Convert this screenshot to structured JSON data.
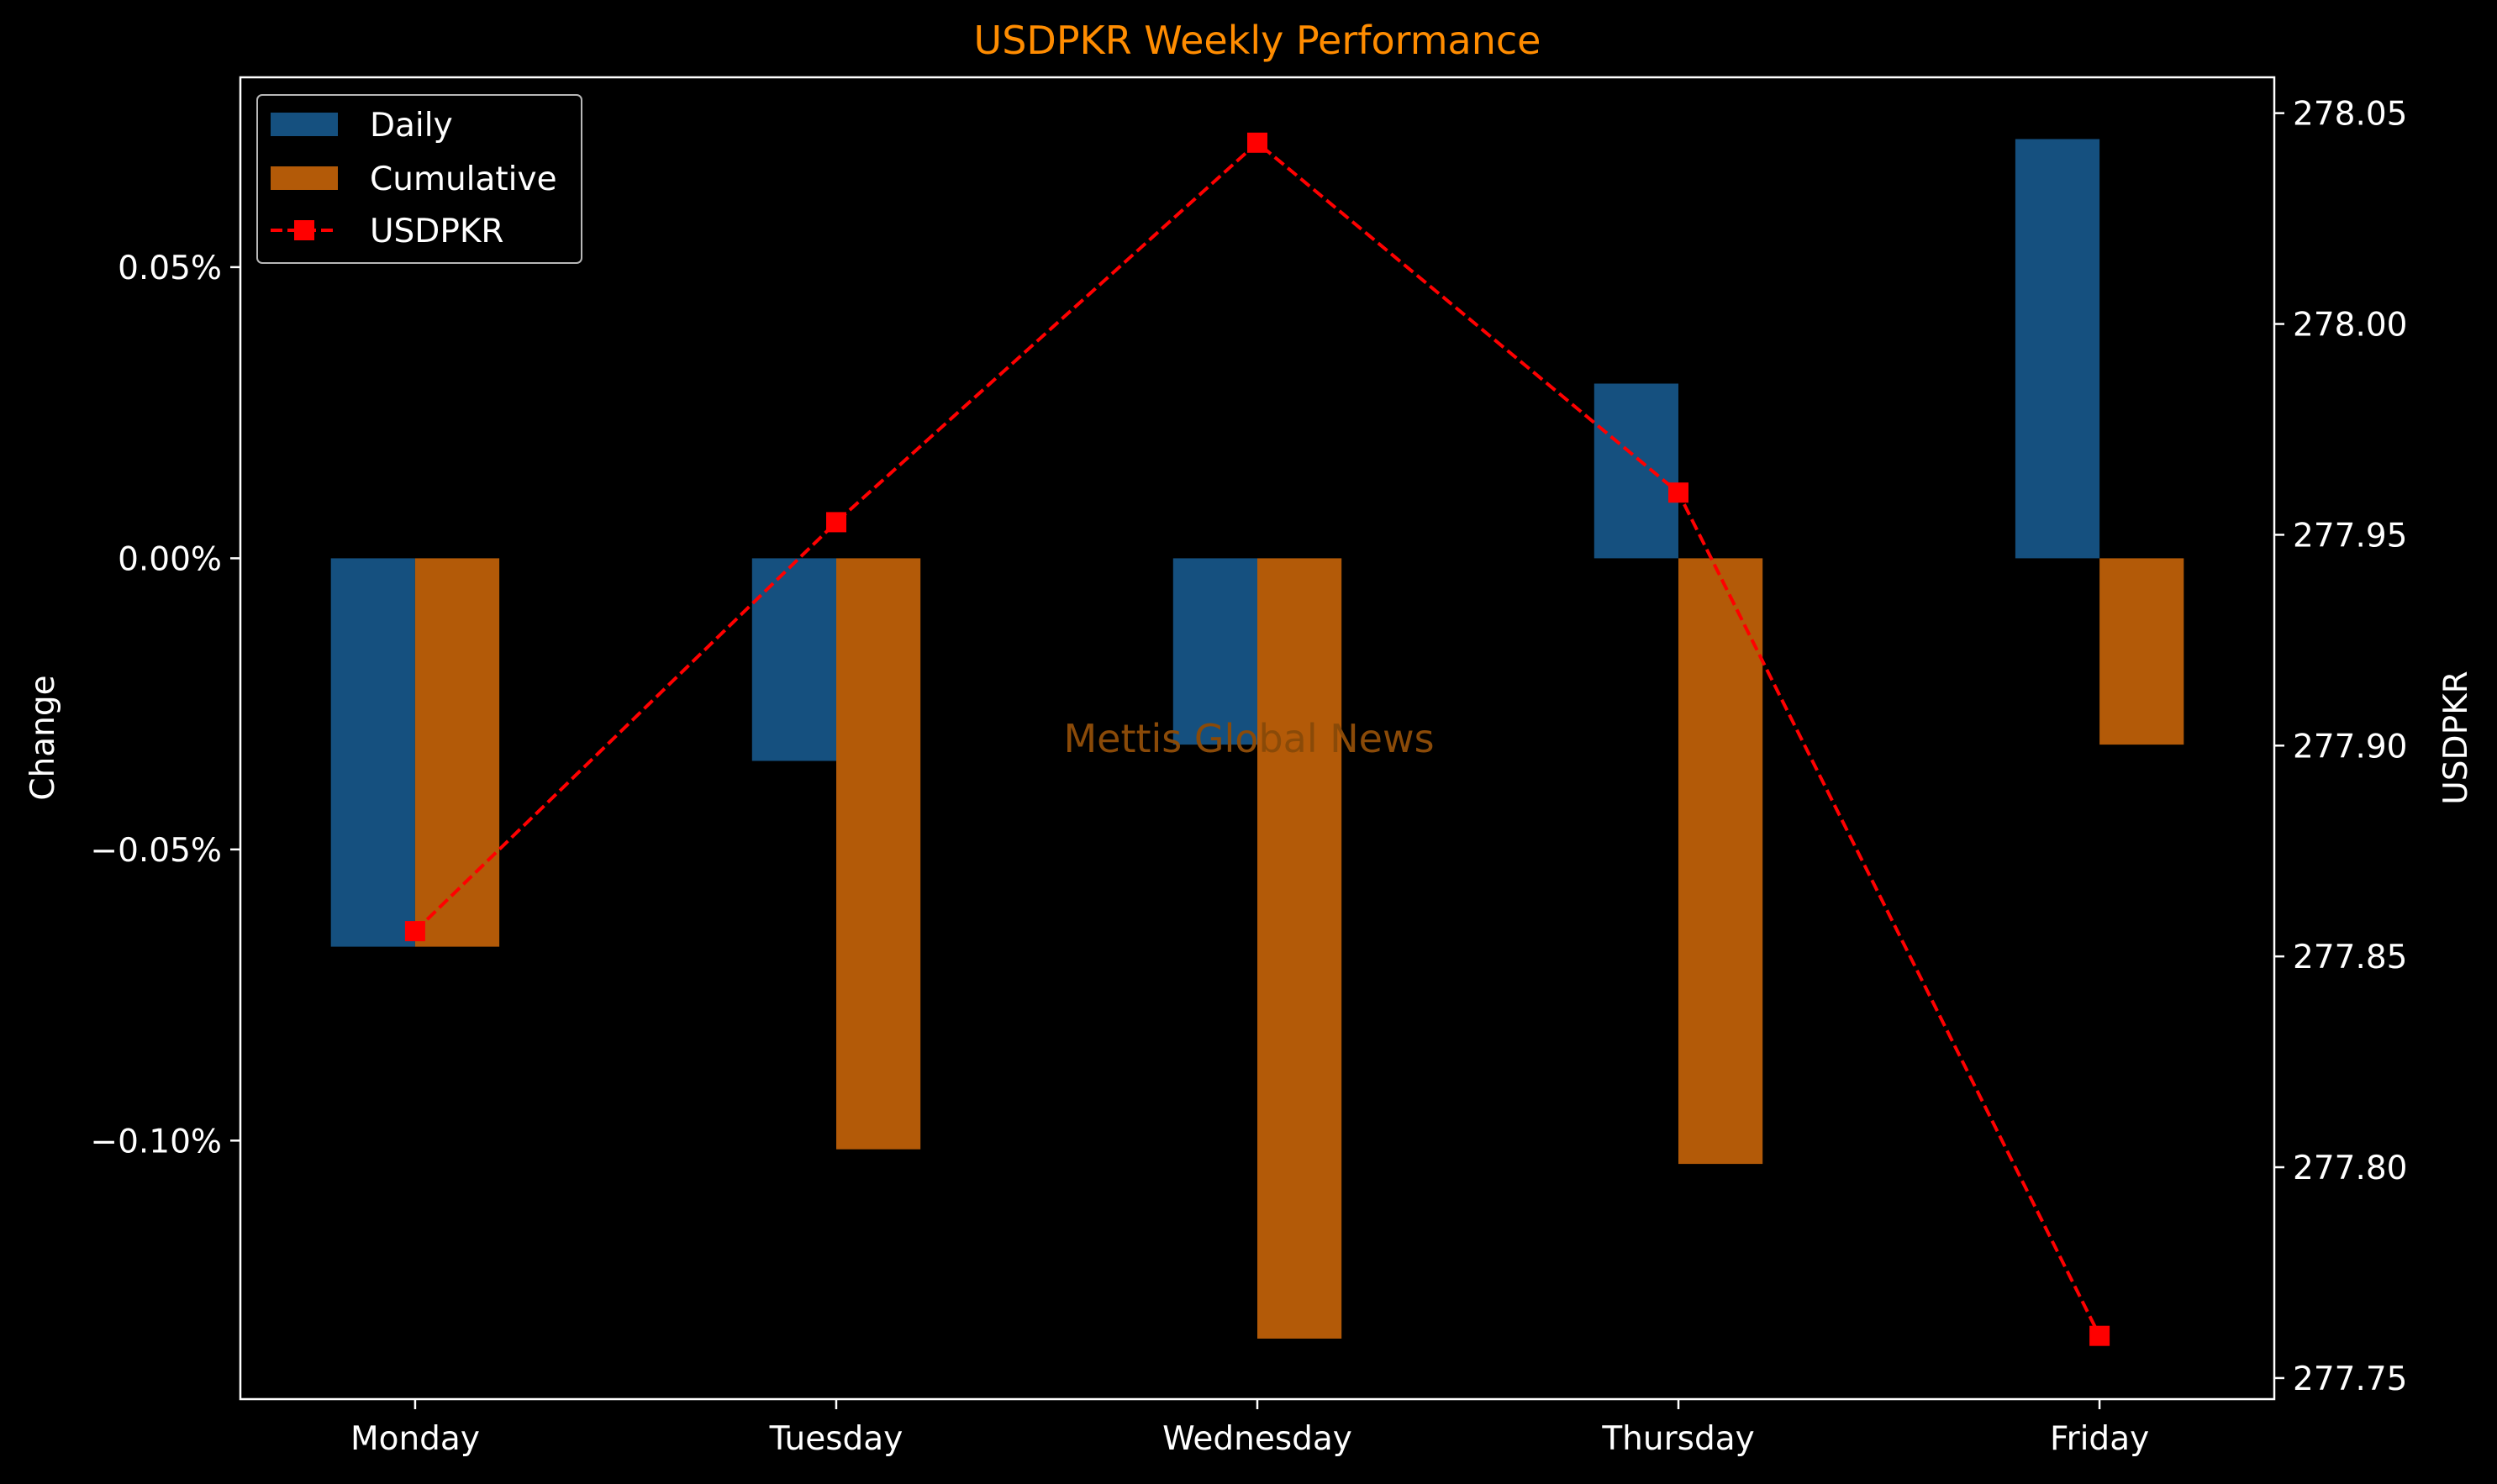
{
  "chart_data": {
    "type": "bar",
    "title": "USDPKR Weekly Performance",
    "title_color": "#FF8C00",
    "categories": [
      "Monday",
      "Tuesday",
      "Wednesday",
      "Thursday",
      "Friday"
    ],
    "ylabel": "Change",
    "y2label": "USDPKR",
    "ylim": [
      -0.1444,
      0.0826
    ],
    "y2lim": [
      277.745,
      278.0585
    ],
    "yticks": [
      0.05,
      0.0,
      -0.05,
      -0.1
    ],
    "ytick_labels": [
      "0.05%",
      "0.00%",
      "−0.05%",
      "−0.10%"
    ],
    "y2ticks": [
      278.05,
      278.0,
      277.95,
      277.9,
      277.85,
      277.8,
      277.75
    ],
    "y2tick_labels": [
      "278.05",
      "278.00",
      "277.95",
      "277.90",
      "277.85",
      "277.80",
      "277.75"
    ],
    "series": [
      {
        "name": "Daily",
        "kind": "bar",
        "color": "#15507F",
        "values": [
          -0.0667,
          -0.0348,
          -0.032,
          0.03,
          0.072
        ]
      },
      {
        "name": "Cumulative",
        "kind": "bar",
        "color": "#B35A08",
        "values": [
          -0.0667,
          -0.1015,
          -0.134,
          -0.104,
          -0.032
        ]
      },
      {
        "name": "USDPKR",
        "kind": "line",
        "axis": "right",
        "color": "#FF0000",
        "linestyle": "dashed",
        "marker": "square",
        "values": [
          277.856,
          277.953,
          278.043,
          277.96,
          277.76
        ]
      }
    ],
    "legend": {
      "position": "top-left"
    },
    "watermark": "Mettis Global News",
    "watermark_color": "#8A4A08",
    "grid": false
  }
}
